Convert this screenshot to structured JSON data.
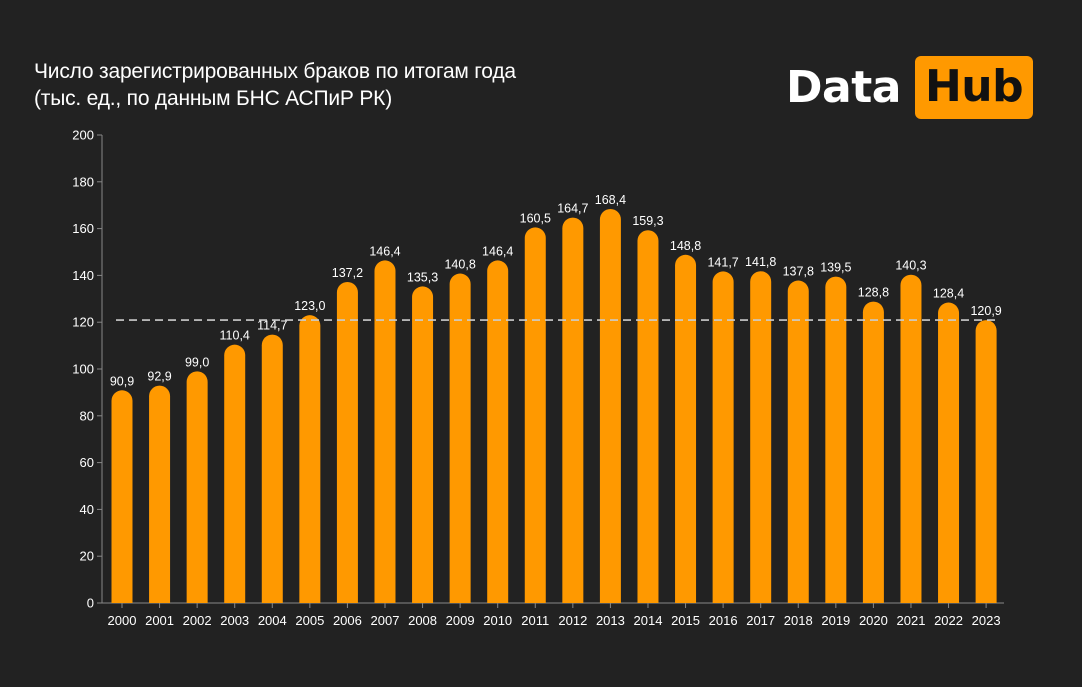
{
  "title": {
    "line1": "Число зарегистрированных браков по итогам года",
    "line2": "(тыс. ед., по данным БНС АСПиР РК)"
  },
  "logo": {
    "part1": "Data",
    "part2": "Hub"
  },
  "colors": {
    "bar": "#ff9900",
    "background": "#222222",
    "reference_line": "#cccccc",
    "text": "#ffffff"
  },
  "chart_data": {
    "type": "bar",
    "title": "Число зарегистрированных браков по итогам года (тыс. ед., по данным БНС АСПиР РК)",
    "categories": [
      "2000",
      "2001",
      "2002",
      "2003",
      "2004",
      "2005",
      "2006",
      "2007",
      "2008",
      "2009",
      "2010",
      "2011",
      "2012",
      "2013",
      "2014",
      "2015",
      "2016",
      "2017",
      "2018",
      "2019",
      "2020",
      "2021",
      "2022",
      "2023"
    ],
    "values": [
      90.9,
      92.9,
      99.0,
      110.4,
      114.7,
      123.0,
      137.2,
      146.4,
      135.3,
      140.8,
      146.4,
      160.5,
      164.7,
      168.4,
      159.3,
      148.8,
      141.7,
      141.8,
      137.8,
      139.5,
      128.8,
      140.3,
      128.4,
      120.9
    ],
    "value_labels": [
      "90,9",
      "92,9",
      "99,0",
      "110,4",
      "114,7",
      "123,0",
      "137,2",
      "146,4",
      "135,3",
      "140,8",
      "146,4",
      "160,5",
      "164,7",
      "168,4",
      "159,3",
      "148,8",
      "141,7",
      "141,8",
      "137,8",
      "139,5",
      "128,8",
      "140,3",
      "128,4",
      "120,9"
    ],
    "y_ticks": [
      0,
      20,
      40,
      60,
      80,
      100,
      120,
      140,
      160,
      180,
      200
    ],
    "ylim": [
      0,
      200
    ],
    "reference_line": 120.9,
    "grid": false,
    "legend": "none"
  }
}
